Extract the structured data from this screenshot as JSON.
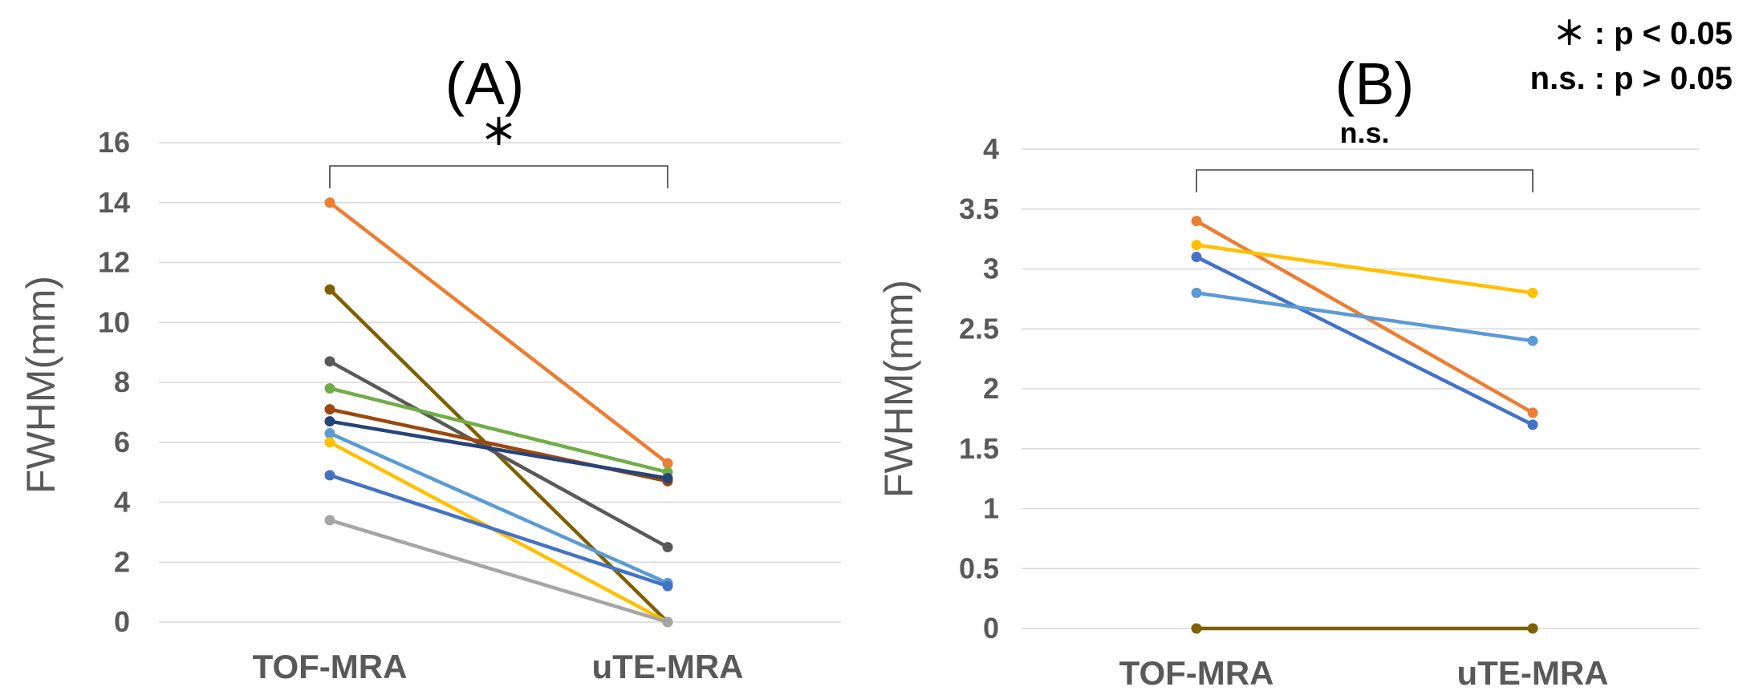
{
  "legend": {
    "line1": "＊ : p < 0.05",
    "line2": "n.s. : p > 0.05"
  },
  "chart_data": [
    {
      "type": "line",
      "title": "(A)",
      "xlabel": "",
      "ylabel": "FWHM(mm)",
      "categories": [
        "TOF-MRA",
        "uTE-MRA"
      ],
      "ylim": [
        0,
        16
      ],
      "yticks": [
        "0",
        "2",
        "4",
        "6",
        "8",
        "10",
        "12",
        "14",
        "16"
      ],
      "ytick_values": [
        0,
        2,
        4,
        6,
        8,
        10,
        12,
        14,
        16
      ],
      "grid": true,
      "significance": "＊",
      "series": [
        {
          "name": "series-1",
          "color": "#ED7D31",
          "values": [
            14.0,
            5.3
          ]
        },
        {
          "name": "series-2",
          "color": "#7F6000",
          "values": [
            11.1,
            0.0
          ]
        },
        {
          "name": "series-3",
          "color": "#595959",
          "values": [
            8.7,
            2.5
          ]
        },
        {
          "name": "series-4",
          "color": "#70AD47",
          "values": [
            7.8,
            5.0
          ]
        },
        {
          "name": "series-5",
          "color": "#9E480E",
          "values": [
            7.1,
            4.7
          ]
        },
        {
          "name": "series-6",
          "color": "#264478",
          "values": [
            6.7,
            4.8
          ]
        },
        {
          "name": "series-7",
          "color": "#5B9BD5",
          "values": [
            6.3,
            1.3
          ]
        },
        {
          "name": "series-8",
          "color": "#FFC000",
          "values": [
            6.0,
            0.0
          ]
        },
        {
          "name": "series-9",
          "color": "#4472C4",
          "values": [
            4.9,
            1.2
          ]
        },
        {
          "name": "series-10",
          "color": "#A5A5A5",
          "values": [
            3.4,
            0.0
          ]
        }
      ]
    },
    {
      "type": "line",
      "title": "(B)",
      "xlabel": "",
      "ylabel": "FWHM(mm)",
      "categories": [
        "TOF-MRA",
        "uTE-MRA"
      ],
      "ylim": [
        0,
        4
      ],
      "yticks": [
        "0",
        "0.5",
        "1",
        "1.5",
        "2",
        "2.5",
        "3",
        "3.5",
        "4"
      ],
      "ytick_values": [
        0,
        0.5,
        1,
        1.5,
        2,
        2.5,
        3,
        3.5,
        4
      ],
      "grid": true,
      "significance": "n.s.",
      "series": [
        {
          "name": "series-1",
          "color": "#ED7D31",
          "values": [
            3.4,
            1.8
          ]
        },
        {
          "name": "series-2",
          "color": "#FFC000",
          "values": [
            3.2,
            2.8
          ]
        },
        {
          "name": "series-3",
          "color": "#4472C4",
          "values": [
            3.1,
            1.7
          ]
        },
        {
          "name": "series-4",
          "color": "#5B9BD5",
          "values": [
            2.8,
            2.4
          ]
        },
        {
          "name": "series-5",
          "color": "#7F6000",
          "values": [
            0.0,
            0.0
          ]
        }
      ]
    }
  ]
}
